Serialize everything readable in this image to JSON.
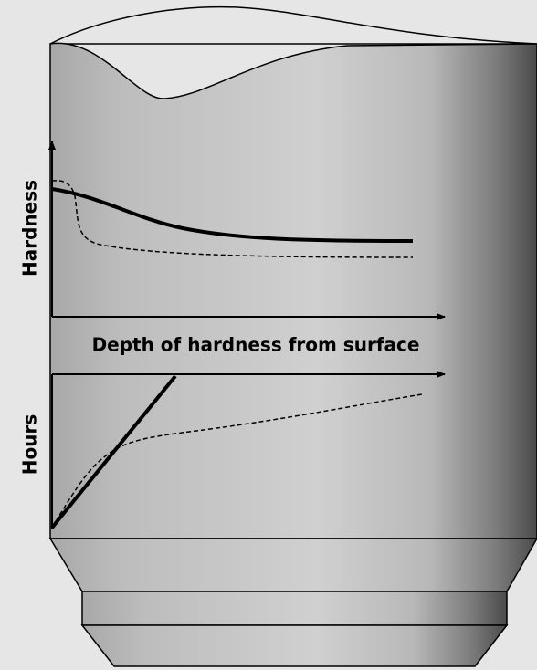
{
  "labels": {
    "hardness": "Hardness",
    "depth": "Depth of hardness from surface",
    "hours": "Hours"
  }
}
